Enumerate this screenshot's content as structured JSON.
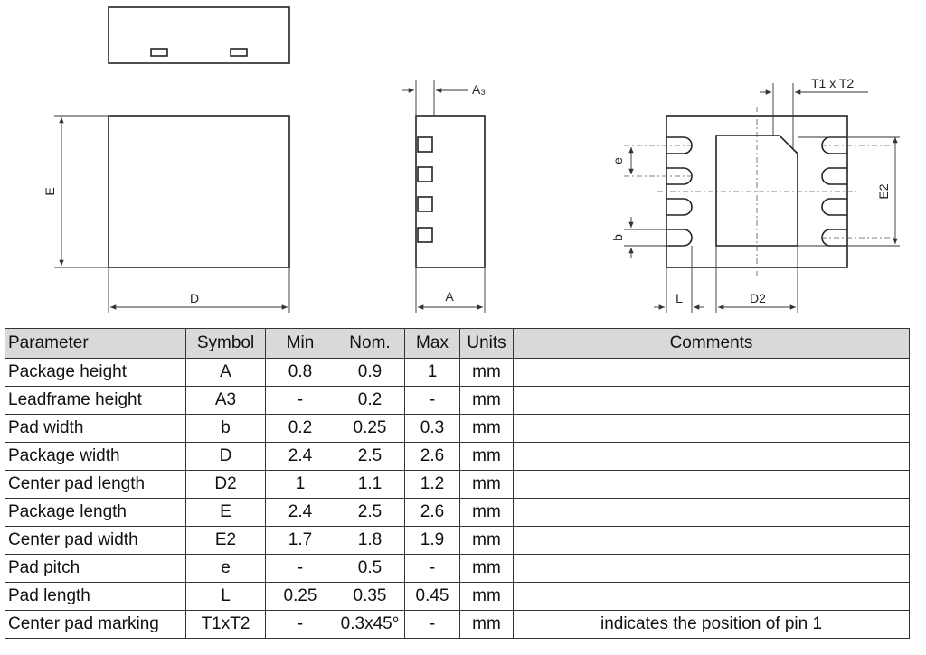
{
  "drawing": {
    "labels": {
      "E": "E",
      "D": "D",
      "A3": "A₃",
      "A": "A",
      "T1xT2": "T1 x T2",
      "e": "e",
      "E2": "E2",
      "b": "b",
      "L": "L",
      "D2": "D2"
    }
  },
  "table": {
    "header": [
      "Parameter",
      "Symbol",
      "Min",
      "Nom.",
      "Max",
      "Units",
      "Comments"
    ],
    "rows": [
      [
        "Package height",
        "A",
        "0.8",
        "0.9",
        "1",
        "mm"
      ],
      [
        "Leadframe height",
        "A3",
        "-",
        "0.2",
        "-",
        "mm"
      ],
      [
        "Pad width",
        "b",
        "0.2",
        "0.25",
        "0.3",
        "mm"
      ],
      [
        "Package width",
        "D",
        "2.4",
        "2.5",
        "2.6",
        "mm"
      ],
      [
        "Center pad length",
        "D2",
        "1",
        "1.1",
        "1.2",
        "mm"
      ],
      [
        "Package length",
        "E",
        "2.4",
        "2.5",
        "2.6",
        "mm"
      ],
      [
        "Center pad width",
        "E2",
        "1.7",
        "1.8",
        "1.9",
        "mm"
      ],
      [
        "Pad pitch",
        "e",
        "-",
        "0.5",
        "-",
        "mm"
      ],
      [
        "Pad length",
        "L",
        "0.25",
        "0.35",
        "0.45",
        "mm"
      ],
      [
        "Center pad marking",
        "T1xT2",
        "-",
        "0.3x45°",
        "-",
        "mm",
        "indicates the position of pin 1"
      ]
    ]
  }
}
